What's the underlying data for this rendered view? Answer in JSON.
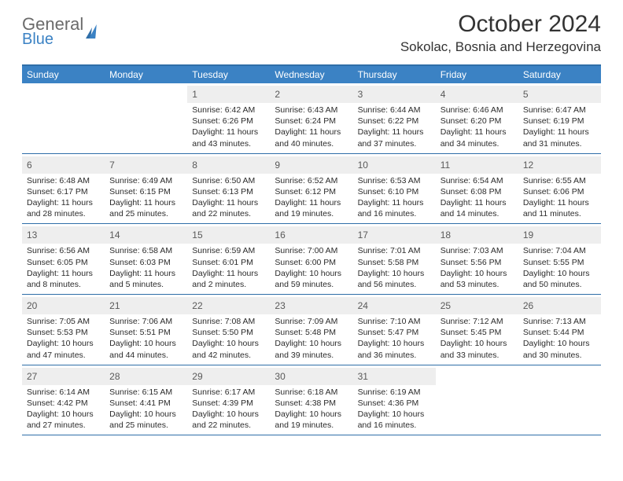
{
  "brand": {
    "line1": "General",
    "line2": "Blue"
  },
  "title": "October 2024",
  "location": "Sokolac, Bosnia and Herzegovina",
  "colors": {
    "header_bg": "#3b82c4",
    "header_border": "#2f6ea8",
    "daynum_bg": "#eeeeee",
    "text": "#2b2b2b"
  },
  "dayNames": [
    "Sunday",
    "Monday",
    "Tuesday",
    "Wednesday",
    "Thursday",
    "Friday",
    "Saturday"
  ],
  "weeks": [
    [
      null,
      null,
      {
        "n": "1",
        "sr": "6:42 AM",
        "ss": "6:26 PM",
        "dl": "11 hours and 43 minutes."
      },
      {
        "n": "2",
        "sr": "6:43 AM",
        "ss": "6:24 PM",
        "dl": "11 hours and 40 minutes."
      },
      {
        "n": "3",
        "sr": "6:44 AM",
        "ss": "6:22 PM",
        "dl": "11 hours and 37 minutes."
      },
      {
        "n": "4",
        "sr": "6:46 AM",
        "ss": "6:20 PM",
        "dl": "11 hours and 34 minutes."
      },
      {
        "n": "5",
        "sr": "6:47 AM",
        "ss": "6:19 PM",
        "dl": "11 hours and 31 minutes."
      }
    ],
    [
      {
        "n": "6",
        "sr": "6:48 AM",
        "ss": "6:17 PM",
        "dl": "11 hours and 28 minutes."
      },
      {
        "n": "7",
        "sr": "6:49 AM",
        "ss": "6:15 PM",
        "dl": "11 hours and 25 minutes."
      },
      {
        "n": "8",
        "sr": "6:50 AM",
        "ss": "6:13 PM",
        "dl": "11 hours and 22 minutes."
      },
      {
        "n": "9",
        "sr": "6:52 AM",
        "ss": "6:12 PM",
        "dl": "11 hours and 19 minutes."
      },
      {
        "n": "10",
        "sr": "6:53 AM",
        "ss": "6:10 PM",
        "dl": "11 hours and 16 minutes."
      },
      {
        "n": "11",
        "sr": "6:54 AM",
        "ss": "6:08 PM",
        "dl": "11 hours and 14 minutes."
      },
      {
        "n": "12",
        "sr": "6:55 AM",
        "ss": "6:06 PM",
        "dl": "11 hours and 11 minutes."
      }
    ],
    [
      {
        "n": "13",
        "sr": "6:56 AM",
        "ss": "6:05 PM",
        "dl": "11 hours and 8 minutes."
      },
      {
        "n": "14",
        "sr": "6:58 AM",
        "ss": "6:03 PM",
        "dl": "11 hours and 5 minutes."
      },
      {
        "n": "15",
        "sr": "6:59 AM",
        "ss": "6:01 PM",
        "dl": "11 hours and 2 minutes."
      },
      {
        "n": "16",
        "sr": "7:00 AM",
        "ss": "6:00 PM",
        "dl": "10 hours and 59 minutes."
      },
      {
        "n": "17",
        "sr": "7:01 AM",
        "ss": "5:58 PM",
        "dl": "10 hours and 56 minutes."
      },
      {
        "n": "18",
        "sr": "7:03 AM",
        "ss": "5:56 PM",
        "dl": "10 hours and 53 minutes."
      },
      {
        "n": "19",
        "sr": "7:04 AM",
        "ss": "5:55 PM",
        "dl": "10 hours and 50 minutes."
      }
    ],
    [
      {
        "n": "20",
        "sr": "7:05 AM",
        "ss": "5:53 PM",
        "dl": "10 hours and 47 minutes."
      },
      {
        "n": "21",
        "sr": "7:06 AM",
        "ss": "5:51 PM",
        "dl": "10 hours and 44 minutes."
      },
      {
        "n": "22",
        "sr": "7:08 AM",
        "ss": "5:50 PM",
        "dl": "10 hours and 42 minutes."
      },
      {
        "n": "23",
        "sr": "7:09 AM",
        "ss": "5:48 PM",
        "dl": "10 hours and 39 minutes."
      },
      {
        "n": "24",
        "sr": "7:10 AM",
        "ss": "5:47 PM",
        "dl": "10 hours and 36 minutes."
      },
      {
        "n": "25",
        "sr": "7:12 AM",
        "ss": "5:45 PM",
        "dl": "10 hours and 33 minutes."
      },
      {
        "n": "26",
        "sr": "7:13 AM",
        "ss": "5:44 PM",
        "dl": "10 hours and 30 minutes."
      }
    ],
    [
      {
        "n": "27",
        "sr": "6:14 AM",
        "ss": "4:42 PM",
        "dl": "10 hours and 27 minutes."
      },
      {
        "n": "28",
        "sr": "6:15 AM",
        "ss": "4:41 PM",
        "dl": "10 hours and 25 minutes."
      },
      {
        "n": "29",
        "sr": "6:17 AM",
        "ss": "4:39 PM",
        "dl": "10 hours and 22 minutes."
      },
      {
        "n": "30",
        "sr": "6:18 AM",
        "ss": "4:38 PM",
        "dl": "10 hours and 19 minutes."
      },
      {
        "n": "31",
        "sr": "6:19 AM",
        "ss": "4:36 PM",
        "dl": "10 hours and 16 minutes."
      },
      null,
      null
    ]
  ],
  "labels": {
    "sunrise": "Sunrise:",
    "sunset": "Sunset:",
    "daylight": "Daylight:"
  }
}
